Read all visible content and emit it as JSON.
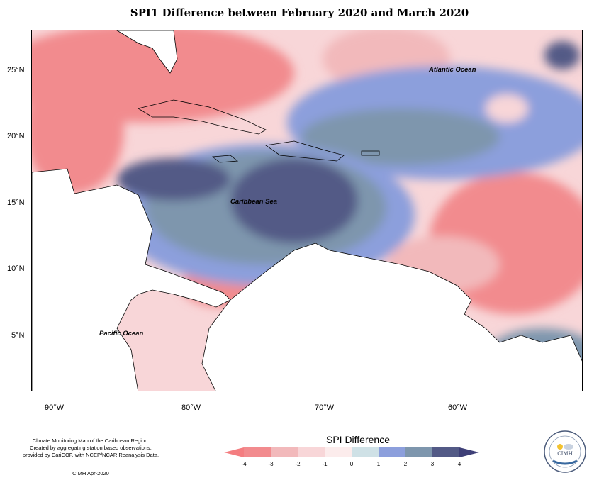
{
  "title": "SPI1 Difference between February 2020 and March 2020",
  "map": {
    "labels": {
      "atlantic": "Atlantic Ocean",
      "caribbean": "Caribbean Sea",
      "pacific": "Pacific Ocean"
    },
    "lat_ticks": [
      "25°N",
      "20°N",
      "15°N",
      "10°N",
      "5°N"
    ],
    "lon_ticks": [
      "90°W",
      "80°W",
      "70°W",
      "60°W"
    ]
  },
  "legend": {
    "title": "SPI Difference",
    "ticks": [
      "-4",
      "-3",
      "-2",
      "-1",
      "0",
      "1",
      "2",
      "3",
      "4"
    ],
    "colors": [
      "#f28b8e",
      "#f2b9bb",
      "#f8d6d8",
      "#fcecec",
      "#cfe1e6",
      "#8c9fdc",
      "#7e96ad",
      "#535a86"
    ],
    "high_color": "#3e3f77",
    "low_color": "#f47d80"
  },
  "credits": {
    "line1": "Climate Monitoring Map of the Caribbean Region.",
    "line2": "Created by aggregating station based observations,",
    "line3": "provided by CariCOF, with NCEP/NCAR Reanalysis Data.",
    "date": "CIMH Apr-2020"
  },
  "logo": {
    "text": "CIMH"
  }
}
